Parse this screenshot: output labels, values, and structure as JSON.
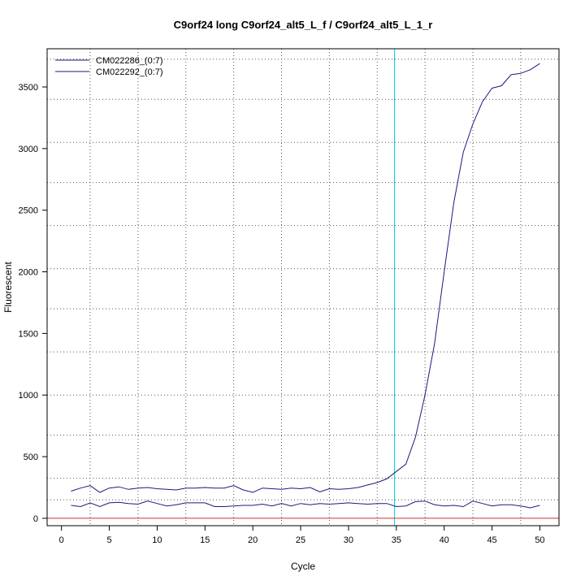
{
  "chart_data": {
    "type": "line",
    "title": "C9orf24 long C9orf24_alt5_L_f / C9orf24_alt5_L_1_r",
    "xlabel": "Cycle",
    "ylabel": "Fluorescent",
    "xlim": [
      -1.5,
      52
    ],
    "ylim": [
      -60,
      3810
    ],
    "x_ticks": [
      0,
      5,
      10,
      15,
      20,
      25,
      30,
      35,
      40,
      45,
      50
    ],
    "y_ticks": [
      0,
      500,
      1000,
      1500,
      2000,
      2500,
      3000,
      3500
    ],
    "x_tick_labels": [
      "0",
      "5",
      "10",
      "15",
      "20",
      "25",
      "30",
      "35",
      "40",
      "45",
      "50"
    ],
    "y_tick_labels": [
      "0",
      "500",
      "1000",
      "1500",
      "2000",
      "2500",
      "3000",
      "3500"
    ],
    "x_grid": [
      3,
      8,
      13,
      18,
      23,
      28,
      33,
      38,
      43,
      48
    ],
    "y_grid": [
      150,
      325,
      675,
      1000,
      1350,
      1700,
      2025,
      2375,
      2725,
      3050,
      3400,
      3725
    ],
    "grid": true,
    "legend_position": "top-left",
    "threshold_x": 34.8,
    "threshold_color": "#00d4e0",
    "baseline_y": 0,
    "baseline_color": "#d03030",
    "line_color": "#1a1a80",
    "x": [
      1,
      2,
      3,
      4,
      5,
      6,
      7,
      8,
      9,
      10,
      11,
      12,
      13,
      14,
      15,
      16,
      17,
      18,
      19,
      20,
      21,
      22,
      23,
      24,
      25,
      26,
      27,
      28,
      29,
      30,
      31,
      32,
      33,
      34,
      35,
      36,
      37,
      38,
      39,
      40,
      41,
      42,
      43,
      44,
      45,
      46,
      47,
      48,
      49,
      50
    ],
    "series": [
      {
        "name": "CM022286_(0:7)",
        "values": [
          220,
          245,
          265,
          210,
          245,
          255,
          235,
          245,
          250,
          240,
          235,
          230,
          245,
          245,
          250,
          245,
          245,
          265,
          230,
          210,
          245,
          240,
          235,
          245,
          240,
          250,
          215,
          240,
          235,
          240,
          250,
          270,
          290,
          320,
          380,
          440,
          660,
          1000,
          1420,
          2000,
          2560,
          2970,
          3200,
          3380,
          3490,
          3510,
          3600,
          3610,
          3640,
          3690
        ]
      },
      {
        "name": "CM022292_(0:7)",
        "values": [
          105,
          95,
          125,
          95,
          125,
          130,
          120,
          115,
          140,
          120,
          100,
          110,
          125,
          125,
          125,
          95,
          95,
          100,
          105,
          105,
          115,
          100,
          120,
          100,
          120,
          110,
          120,
          115,
          120,
          125,
          120,
          115,
          120,
          120,
          95,
          100,
          135,
          140,
          110,
          100,
          105,
          95,
          140,
          120,
          100,
          110,
          110,
          100,
          85,
          105
        ]
      }
    ]
  }
}
